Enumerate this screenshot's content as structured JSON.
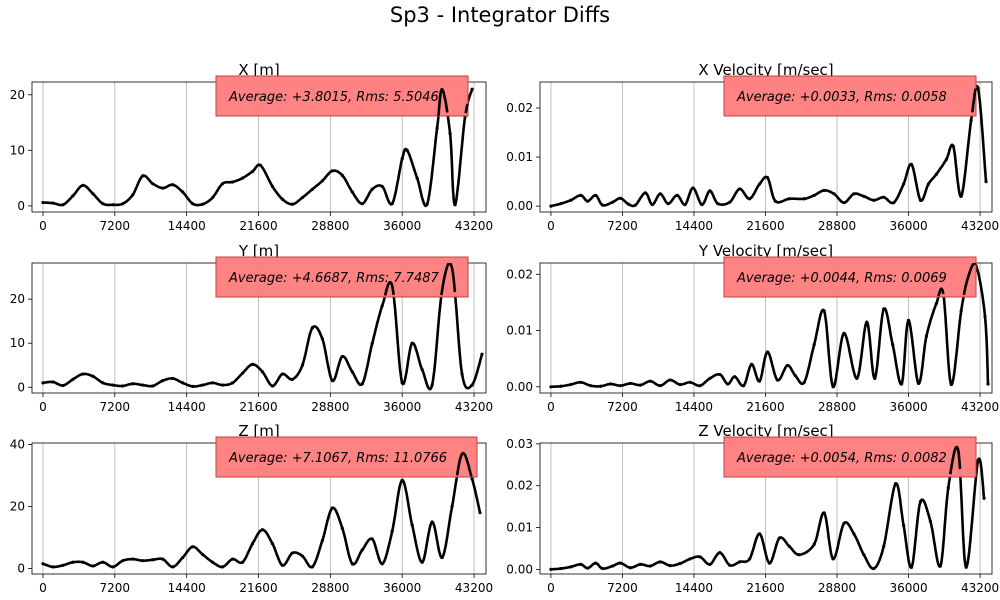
{
  "figure_title": "Sp3 - Integrator Diffs",
  "colors": {
    "data": "#000000",
    "grid": "#b0b0b0",
    "annotation_fill": "#ff7f7f",
    "annotation_edge": "#c04040"
  },
  "chart_data": [
    {
      "type": "scatter",
      "title": "X [m]",
      "annotation": "Average: +3.8015, Rms: 5.5046",
      "xlim": [
        -1100,
        44400
      ],
      "ylim": [
        -1.1,
        22.3
      ],
      "xticks": [
        0,
        7200,
        14400,
        21600,
        28800,
        36000,
        43200
      ],
      "xtick_labels": [
        "0",
        "7200",
        "14400",
        "21600",
        "28800",
        "36000",
        "43200"
      ],
      "yticks": [
        0,
        10,
        20
      ],
      "ytick_labels": [
        "0",
        "10",
        "20"
      ],
      "grid": "x",
      "points": [
        [
          0,
          0.6
        ],
        [
          1000,
          0.5
        ],
        [
          2000,
          0.2
        ],
        [
          3000,
          1.8
        ],
        [
          4000,
          3.7
        ],
        [
          5000,
          2.2
        ],
        [
          6000,
          0.4
        ],
        [
          7000,
          0.2
        ],
        [
          8000,
          0.4
        ],
        [
          9000,
          2.0
        ],
        [
          10000,
          5.4
        ],
        [
          11000,
          4.0
        ],
        [
          12000,
          3.2
        ],
        [
          13000,
          3.8
        ],
        [
          14000,
          2.5
        ],
        [
          15000,
          0.4
        ],
        [
          16000,
          0.3
        ],
        [
          17000,
          1.5
        ],
        [
          18000,
          4.0
        ],
        [
          19000,
          4.3
        ],
        [
          20000,
          5.0
        ],
        [
          21000,
          6.2
        ],
        [
          21800,
          7.3
        ],
        [
          23000,
          3.5
        ],
        [
          24000,
          1.2
        ],
        [
          25000,
          0.3
        ],
        [
          26000,
          1.5
        ],
        [
          27000,
          3.0
        ],
        [
          28000,
          4.5
        ],
        [
          29000,
          6.3
        ],
        [
          30000,
          5.5
        ],
        [
          31000,
          2.5
        ],
        [
          32000,
          0.4
        ],
        [
          33000,
          3.0
        ],
        [
          34000,
          3.5
        ],
        [
          35000,
          0.4
        ],
        [
          36000,
          8.5
        ],
        [
          36500,
          10.0
        ],
        [
          37500,
          5.0
        ],
        [
          38500,
          0.3
        ],
        [
          39500,
          14.0
        ],
        [
          40000,
          21.0
        ],
        [
          40800,
          13.0
        ],
        [
          41300,
          0.2
        ],
        [
          42300,
          16.0
        ],
        [
          43000,
          21.0
        ]
      ]
    },
    {
      "type": "scatter",
      "title": "X Velocity [m/sec]",
      "annotation": "Average: +0.0033, Rms: 0.0058",
      "xlim": [
        -1100,
        44400
      ],
      "ylim": [
        -0.0012,
        0.0253
      ],
      "xticks": [
        0,
        7200,
        14400,
        21600,
        28800,
        36000,
        43200
      ],
      "xtick_labels": [
        "0",
        "7200",
        "14400",
        "21600",
        "28800",
        "36000",
        "43200"
      ],
      "yticks": [
        0,
        0.01,
        0.02
      ],
      "ytick_labels": [
        "0.00",
        "0.01",
        "0.02"
      ],
      "grid": "x",
      "points": [
        [
          0,
          0.0
        ],
        [
          1000,
          0.0005
        ],
        [
          2000,
          0.0012
        ],
        [
          3000,
          0.0022
        ],
        [
          3700,
          0.001
        ],
        [
          4500,
          0.0022
        ],
        [
          5200,
          0.0002
        ],
        [
          6200,
          0.0008
        ],
        [
          7000,
          0.0016
        ],
        [
          7800,
          0.0004
        ],
        [
          8500,
          0.0002
        ],
        [
          9500,
          0.0027
        ],
        [
          10200,
          0.0003
        ],
        [
          11000,
          0.0025
        ],
        [
          11800,
          0.0005
        ],
        [
          12700,
          0.0022
        ],
        [
          13500,
          0.0003
        ],
        [
          14300,
          0.0037
        ],
        [
          15200,
          0.0003
        ],
        [
          16000,
          0.0031
        ],
        [
          16800,
          0.0005
        ],
        [
          18000,
          0.0008
        ],
        [
          19000,
          0.0035
        ],
        [
          20000,
          0.0015
        ],
        [
          21000,
          0.0045
        ],
        [
          21800,
          0.0058
        ],
        [
          22600,
          0.001
        ],
        [
          24000,
          0.0015
        ],
        [
          25500,
          0.0015
        ],
        [
          26500,
          0.0022
        ],
        [
          27500,
          0.0032
        ],
        [
          28500,
          0.0025
        ],
        [
          29500,
          0.0007
        ],
        [
          30500,
          0.0025
        ],
        [
          31500,
          0.002
        ],
        [
          32500,
          0.0012
        ],
        [
          33500,
          0.0018
        ],
        [
          34500,
          0.0007
        ],
        [
          35500,
          0.0045
        ],
        [
          36300,
          0.0085
        ],
        [
          37200,
          0.0012
        ],
        [
          38000,
          0.0045
        ],
        [
          38800,
          0.0065
        ],
        [
          39800,
          0.0095
        ],
        [
          40500,
          0.0122
        ],
        [
          41300,
          0.002
        ],
        [
          42300,
          0.0175
        ],
        [
          43000,
          0.024
        ],
        [
          43800,
          0.005
        ]
      ]
    },
    {
      "type": "scatter",
      "title": "Y [m]",
      "annotation": "Average: +4.6687, Rms: 7.7487",
      "xlim": [
        -1100,
        44400
      ],
      "ylim": [
        -1.3,
        28.2
      ],
      "xticks": [
        0,
        7200,
        14400,
        21600,
        28800,
        36000,
        43200
      ],
      "xtick_labels": [
        "0",
        "7200",
        "14400",
        "21600",
        "28800",
        "36000",
        "43200"
      ],
      "yticks": [
        0,
        10,
        20
      ],
      "ytick_labels": [
        "0",
        "10",
        "20"
      ],
      "grid": "x",
      "points": [
        [
          0,
          1.0
        ],
        [
          1000,
          1.2
        ],
        [
          2000,
          0.4
        ],
        [
          3000,
          1.8
        ],
        [
          4000,
          3.0
        ],
        [
          5000,
          2.5
        ],
        [
          6000,
          1.0
        ],
        [
          7000,
          0.5
        ],
        [
          8000,
          0.3
        ],
        [
          9000,
          0.8
        ],
        [
          10000,
          0.5
        ],
        [
          11000,
          0.3
        ],
        [
          12000,
          1.5
        ],
        [
          13000,
          2.0
        ],
        [
          14000,
          1.0
        ],
        [
          15000,
          0.2
        ],
        [
          16000,
          0.5
        ],
        [
          17000,
          1.0
        ],
        [
          18000,
          0.5
        ],
        [
          19000,
          1.0
        ],
        [
          20000,
          3.2
        ],
        [
          21000,
          5.2
        ],
        [
          22000,
          3.5
        ],
        [
          23000,
          0.3
        ],
        [
          24000,
          3.0
        ],
        [
          25000,
          1.8
        ],
        [
          26000,
          5.0
        ],
        [
          27000,
          13.5
        ],
        [
          28000,
          11.0
        ],
        [
          29000,
          1.5
        ],
        [
          30000,
          7.0
        ],
        [
          31000,
          3.5
        ],
        [
          32000,
          0.8
        ],
        [
          33000,
          10.0
        ],
        [
          34000,
          18.5
        ],
        [
          35000,
          23.0
        ],
        [
          36000,
          1.0
        ],
        [
          37000,
          10.0
        ],
        [
          38000,
          4.0
        ],
        [
          39000,
          0.5
        ],
        [
          40000,
          22.0
        ],
        [
          41000,
          27.0
        ],
        [
          42000,
          3.0
        ],
        [
          43000,
          0.5
        ],
        [
          44000,
          7.5
        ]
      ]
    },
    {
      "type": "scatter",
      "title": "Y Velocity [m/sec]",
      "annotation": "Average: +0.0044, Rms: 0.0069",
      "xlim": [
        -1100,
        44400
      ],
      "ylim": [
        -0.0011,
        0.022
      ],
      "xticks": [
        0,
        7200,
        14400,
        21600,
        28800,
        36000,
        43200
      ],
      "xtick_labels": [
        "0",
        "7200",
        "14400",
        "21600",
        "28800",
        "36000",
        "43200"
      ],
      "yticks": [
        0,
        0.01,
        0.02
      ],
      "ytick_labels": [
        "0.00",
        "0.01",
        "0.02"
      ],
      "grid": "x",
      "points": [
        [
          0,
          0.0
        ],
        [
          1000,
          0.0001
        ],
        [
          2000,
          0.0004
        ],
        [
          3000,
          0.0008
        ],
        [
          4000,
          0.0002
        ],
        [
          5000,
          0.0001
        ],
        [
          6000,
          0.0005
        ],
        [
          7000,
          0.0002
        ],
        [
          8000,
          0.0006
        ],
        [
          9000,
          0.0003
        ],
        [
          10000,
          0.001
        ],
        [
          11000,
          0.0002
        ],
        [
          12000,
          0.0012
        ],
        [
          13000,
          0.0004
        ],
        [
          14000,
          0.0008
        ],
        [
          15000,
          0.0002
        ],
        [
          16000,
          0.0015
        ],
        [
          17000,
          0.0022
        ],
        [
          17800,
          0.0005
        ],
        [
          18500,
          0.0018
        ],
        [
          19400,
          0.0002
        ],
        [
          20200,
          0.004
        ],
        [
          21000,
          0.001
        ],
        [
          21800,
          0.0062
        ],
        [
          22800,
          0.0012
        ],
        [
          23800,
          0.0038
        ],
        [
          24600,
          0.002
        ],
        [
          25500,
          0.0008
        ],
        [
          26500,
          0.0075
        ],
        [
          27500,
          0.0135
        ],
        [
          28400,
          0.0
        ],
        [
          29500,
          0.0095
        ],
        [
          30800,
          0.0015
        ],
        [
          31800,
          0.0115
        ],
        [
          32600,
          0.0015
        ],
        [
          33500,
          0.0138
        ],
        [
          34400,
          0.0075
        ],
        [
          35300,
          0.0005
        ],
        [
          36000,
          0.0118
        ],
        [
          37000,
          0.0006
        ],
        [
          37800,
          0.009
        ],
        [
          38800,
          0.0148
        ],
        [
          39500,
          0.0165
        ],
        [
          40300,
          0.0004
        ],
        [
          41300,
          0.0135
        ],
        [
          42000,
          0.0195
        ],
        [
          42800,
          0.0215
        ],
        [
          43700,
          0.0125
        ],
        [
          44000,
          0.0005
        ]
      ]
    },
    {
      "type": "scatter",
      "title": "Z [m]",
      "annotation": "Average: +7.1067, Rms: 11.0766",
      "xlim": [
        -1100,
        44400
      ],
      "ylim": [
        -1.8,
        40.5
      ],
      "xticks": [
        0,
        7200,
        14400,
        21600,
        28800,
        36000,
        43200
      ],
      "xtick_labels": [
        "0",
        "7200",
        "14400",
        "21600",
        "28800",
        "36000",
        "43200"
      ],
      "yticks": [
        0,
        20,
        40
      ],
      "ytick_labels": [
        "0",
        "20",
        "40"
      ],
      "grid": "x",
      "points": [
        [
          0,
          1.5
        ],
        [
          1000,
          0.5
        ],
        [
          2000,
          1.0
        ],
        [
          3000,
          2.0
        ],
        [
          4000,
          2.0
        ],
        [
          5000,
          0.8
        ],
        [
          6000,
          2.0
        ],
        [
          7000,
          0.5
        ],
        [
          8000,
          2.5
        ],
        [
          9000,
          3.0
        ],
        [
          10000,
          2.5
        ],
        [
          11000,
          2.8
        ],
        [
          12000,
          3.0
        ],
        [
          13000,
          0.5
        ],
        [
          14000,
          3.5
        ],
        [
          15000,
          7.0
        ],
        [
          16000,
          4.5
        ],
        [
          17000,
          2.0
        ],
        [
          18000,
          0.5
        ],
        [
          19000,
          3.0
        ],
        [
          20000,
          2.0
        ],
        [
          21000,
          8.0
        ],
        [
          22000,
          12.5
        ],
        [
          23000,
          8.0
        ],
        [
          24000,
          1.0
        ],
        [
          25000,
          5.0
        ],
        [
          26000,
          4.0
        ],
        [
          27000,
          0.5
        ],
        [
          28000,
          9.0
        ],
        [
          29000,
          19.5
        ],
        [
          30000,
          13.0
        ],
        [
          31000,
          1.5
        ],
        [
          32000,
          6.0
        ],
        [
          33000,
          9.5
        ],
        [
          34000,
          1.5
        ],
        [
          35000,
          12.0
        ],
        [
          36000,
          28.5
        ],
        [
          37000,
          14.0
        ],
        [
          38000,
          2.0
        ],
        [
          39000,
          15.0
        ],
        [
          40000,
          3.5
        ],
        [
          41000,
          20.0
        ],
        [
          42000,
          37.0
        ],
        [
          43000,
          29.0
        ],
        [
          43800,
          18.0
        ]
      ]
    },
    {
      "type": "scatter",
      "title": "Z Velocity [m/sec]",
      "annotation": "Average: +0.0054, Rms: 0.0082",
      "xlim": [
        -1100,
        44400
      ],
      "ylim": [
        -0.0011,
        0.0302
      ],
      "xticks": [
        0,
        7200,
        14400,
        21600,
        28800,
        36000,
        43200
      ],
      "xtick_labels": [
        "0",
        "7200",
        "14400",
        "21600",
        "28800",
        "36000",
        "43200"
      ],
      "yticks": [
        0,
        0.01,
        0.02,
        0.03
      ],
      "ytick_labels": [
        "0.00",
        "0.01",
        "0.02",
        "0.03"
      ],
      "grid": "x",
      "points": [
        [
          0,
          0.0
        ],
        [
          1000,
          0.0002
        ],
        [
          2000,
          0.0006
        ],
        [
          3000,
          0.0012
        ],
        [
          3700,
          0.0003
        ],
        [
          4500,
          0.0015
        ],
        [
          5200,
          0.0002
        ],
        [
          6200,
          0.0008
        ],
        [
          7000,
          0.0015
        ],
        [
          8000,
          0.0004
        ],
        [
          9000,
          0.0012
        ],
        [
          10000,
          0.0008
        ],
        [
          11000,
          0.0018
        ],
        [
          12000,
          0.0009
        ],
        [
          13000,
          0.0014
        ],
        [
          14000,
          0.0025
        ],
        [
          15000,
          0.003
        ],
        [
          16000,
          0.0012
        ],
        [
          17000,
          0.004
        ],
        [
          18000,
          0.001
        ],
        [
          19000,
          0.0018
        ],
        [
          20000,
          0.0025
        ],
        [
          21000,
          0.0085
        ],
        [
          22000,
          0.0015
        ],
        [
          23000,
          0.0075
        ],
        [
          24000,
          0.0055
        ],
        [
          25000,
          0.0035
        ],
        [
          26500,
          0.006
        ],
        [
          27500,
          0.0135
        ],
        [
          28400,
          0.0025
        ],
        [
          29500,
          0.011
        ],
        [
          30500,
          0.0085
        ],
        [
          31500,
          0.0035
        ],
        [
          32500,
          0.0002
        ],
        [
          33500,
          0.0055
        ],
        [
          34700,
          0.0205
        ],
        [
          35500,
          0.0105
        ],
        [
          36300,
          0.0005
        ],
        [
          37200,
          0.0162
        ],
        [
          38200,
          0.0115
        ],
        [
          39200,
          0.0008
        ],
        [
          40000,
          0.0195
        ],
        [
          41000,
          0.0285
        ],
        [
          41800,
          0.0005
        ],
        [
          43000,
          0.026
        ],
        [
          43600,
          0.017
        ]
      ]
    }
  ]
}
